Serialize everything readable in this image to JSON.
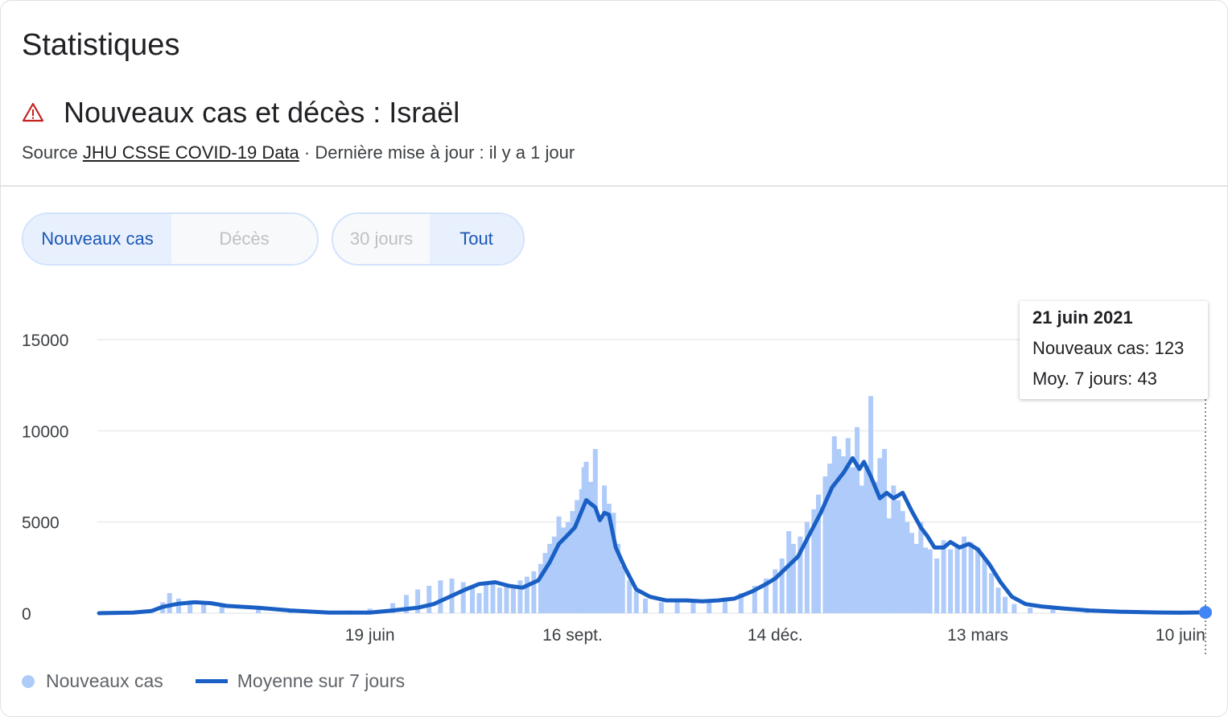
{
  "header": {
    "heading": "Statistiques",
    "title": "Nouveaux cas et décès : Israël",
    "source_prefix": "Source ",
    "source_link": "JHU CSSE COVID-19 Data",
    "source_suffix": " · Dernière mise à jour : il y a 1 jour",
    "warning_icon": "warning-triangle-icon"
  },
  "controls": {
    "metric": [
      {
        "label": "Nouveaux cas",
        "selected": true
      },
      {
        "label": "Décès",
        "selected": false
      }
    ],
    "range": [
      {
        "label": "30 jours",
        "selected": false
      },
      {
        "label": "Tout",
        "selected": true
      }
    ]
  },
  "tooltip": {
    "date": "21 juin 2021",
    "cases": "Nouveaux cas: 123",
    "avg": "Moy. 7 jours: 43"
  },
  "legend": {
    "bars": "Nouveaux cas",
    "line": "Moyenne sur 7 jours"
  },
  "colors": {
    "bar": "#aecbfa",
    "line": "#1a5fc4",
    "grid": "#ebebeb",
    "accent": "#1a57b4"
  },
  "chart_data": {
    "type": "bar",
    "title": "Nouveaux cas et décès : Israël",
    "x_start": "2020-02-21",
    "x_end": "2021-06-21",
    "ylim": [
      0,
      15000
    ],
    "yticks": [
      0,
      5000,
      10000,
      15000
    ],
    "ytick_labels": [
      "0",
      "5000",
      "10000",
      "15000"
    ],
    "xticks": [
      {
        "date": "2020-06-19",
        "label": "19 juin"
      },
      {
        "date": "2020-09-16",
        "label": "16 sept."
      },
      {
        "date": "2020-12-14",
        "label": "14 déc."
      },
      {
        "date": "2021-03-13",
        "label": "13 mars"
      },
      {
        "date": "2021-06-10",
        "label": "10 juin"
      }
    ],
    "grid": true,
    "legend_position": "bottom-left",
    "series": [
      {
        "name": "Nouveaux cas",
        "kind": "bars",
        "points": [
          [
            "2020-03-20",
            600
          ],
          [
            "2020-03-23",
            1100
          ],
          [
            "2020-03-27",
            800
          ],
          [
            "2020-04-01",
            700
          ],
          [
            "2020-04-07",
            500
          ],
          [
            "2020-04-15",
            400
          ],
          [
            "2020-05-01",
            200
          ],
          [
            "2020-05-15",
            50
          ],
          [
            "2020-06-01",
            60
          ],
          [
            "2020-06-10",
            150
          ],
          [
            "2020-06-19",
            250
          ],
          [
            "2020-06-29",
            550
          ],
          [
            "2020-07-05",
            1000
          ],
          [
            "2020-07-10",
            1300
          ],
          [
            "2020-07-15",
            1500
          ],
          [
            "2020-07-20",
            1800
          ],
          [
            "2020-07-25",
            1900
          ],
          [
            "2020-07-30",
            1700
          ],
          [
            "2020-08-03",
            1500
          ],
          [
            "2020-08-06",
            1100
          ],
          [
            "2020-08-09",
            1600
          ],
          [
            "2020-08-12",
            1700
          ],
          [
            "2020-08-15",
            1400
          ],
          [
            "2020-08-18",
            1600
          ],
          [
            "2020-08-21",
            1500
          ],
          [
            "2020-08-24",
            1800
          ],
          [
            "2020-08-27",
            2000
          ],
          [
            "2020-08-30",
            2300
          ],
          [
            "2020-09-02",
            2700
          ],
          [
            "2020-09-04",
            3300
          ],
          [
            "2020-09-06",
            3800
          ],
          [
            "2020-09-08",
            4200
          ],
          [
            "2020-09-10",
            5300
          ],
          [
            "2020-09-12",
            4700
          ],
          [
            "2020-09-14",
            5000
          ],
          [
            "2020-09-16",
            5600
          ],
          [
            "2020-09-18",
            6200
          ],
          [
            "2020-09-20",
            6800
          ],
          [
            "2020-09-21",
            8000
          ],
          [
            "2020-09-22",
            8300
          ],
          [
            "2020-09-24",
            7200
          ],
          [
            "2020-09-26",
            9000
          ],
          [
            "2020-09-28",
            5200
          ],
          [
            "2020-09-30",
            7000
          ],
          [
            "2020-10-02",
            6000
          ],
          [
            "2020-10-04",
            5500
          ],
          [
            "2020-10-06",
            3800
          ],
          [
            "2020-10-08",
            2600
          ],
          [
            "2020-10-11",
            1800
          ],
          [
            "2020-10-14",
            1200
          ],
          [
            "2020-10-18",
            800
          ],
          [
            "2020-10-25",
            600
          ],
          [
            "2020-11-01",
            700
          ],
          [
            "2020-11-08",
            650
          ],
          [
            "2020-11-15",
            700
          ],
          [
            "2020-11-22",
            850
          ],
          [
            "2020-11-29",
            1100
          ],
          [
            "2020-12-05",
            1500
          ],
          [
            "2020-12-10",
            1900
          ],
          [
            "2020-12-14",
            2400
          ],
          [
            "2020-12-17",
            3000
          ],
          [
            "2020-12-20",
            4500
          ],
          [
            "2020-12-22",
            3800
          ],
          [
            "2020-12-25",
            4200
          ],
          [
            "2020-12-28",
            5000
          ],
          [
            "2020-12-31",
            5700
          ],
          [
            "2021-01-02",
            6500
          ],
          [
            "2021-01-05",
            7500
          ],
          [
            "2021-01-07",
            8200
          ],
          [
            "2021-01-09",
            9700
          ],
          [
            "2021-01-11",
            9000
          ],
          [
            "2021-01-13",
            8600
          ],
          [
            "2021-01-15",
            9600
          ],
          [
            "2021-01-17",
            8000
          ],
          [
            "2021-01-19",
            10200
          ],
          [
            "2021-01-21",
            7000
          ],
          [
            "2021-01-23",
            8000
          ],
          [
            "2021-01-25",
            11900
          ],
          [
            "2021-01-27",
            7200
          ],
          [
            "2021-01-29",
            8500
          ],
          [
            "2021-01-31",
            9000
          ],
          [
            "2021-02-02",
            5200
          ],
          [
            "2021-02-04",
            7000
          ],
          [
            "2021-02-06",
            6200
          ],
          [
            "2021-02-08",
            5600
          ],
          [
            "2021-02-10",
            5000
          ],
          [
            "2021-02-12",
            4400
          ],
          [
            "2021-02-14",
            3800
          ],
          [
            "2021-02-16",
            5000
          ],
          [
            "2021-02-18",
            3600
          ],
          [
            "2021-02-20",
            3500
          ],
          [
            "2021-02-23",
            3000
          ],
          [
            "2021-02-26",
            4000
          ],
          [
            "2021-03-01",
            3500
          ],
          [
            "2021-03-04",
            3700
          ],
          [
            "2021-03-07",
            4200
          ],
          [
            "2021-03-10",
            3900
          ],
          [
            "2021-03-13",
            3600
          ],
          [
            "2021-03-16",
            3000
          ],
          [
            "2021-03-19",
            2200
          ],
          [
            "2021-03-22",
            1400
          ],
          [
            "2021-03-25",
            900
          ],
          [
            "2021-03-29",
            500
          ],
          [
            "2021-04-05",
            300
          ],
          [
            "2021-04-15",
            200
          ],
          [
            "2021-04-30",
            120
          ],
          [
            "2021-05-15",
            60
          ],
          [
            "2021-05-31",
            30
          ],
          [
            "2021-06-10",
            25
          ],
          [
            "2021-06-21",
            123
          ]
        ]
      },
      {
        "name": "Moyenne sur 7 jours",
        "kind": "line",
        "points": [
          [
            "2020-02-21",
            0
          ],
          [
            "2020-03-07",
            30
          ],
          [
            "2020-03-15",
            120
          ],
          [
            "2020-03-20",
            350
          ],
          [
            "2020-03-27",
            520
          ],
          [
            "2020-04-03",
            600
          ],
          [
            "2020-04-10",
            550
          ],
          [
            "2020-04-17",
            400
          ],
          [
            "2020-05-01",
            300
          ],
          [
            "2020-05-15",
            150
          ],
          [
            "2020-06-01",
            30
          ],
          [
            "2020-06-19",
            30
          ],
          [
            "2020-06-29",
            150
          ],
          [
            "2020-07-10",
            300
          ],
          [
            "2020-07-17",
            500
          ],
          [
            "2020-07-24",
            900
          ],
          [
            "2020-07-31",
            1300
          ],
          [
            "2020-08-06",
            1600
          ],
          [
            "2020-08-13",
            1700
          ],
          [
            "2020-08-19",
            1500
          ],
          [
            "2020-08-25",
            1400
          ],
          [
            "2020-09-01",
            1800
          ],
          [
            "2020-09-06",
            2800
          ],
          [
            "2020-09-10",
            3800
          ],
          [
            "2020-09-14",
            4300
          ],
          [
            "2020-09-17",
            4700
          ],
          [
            "2020-09-19",
            5300
          ],
          [
            "2020-09-22",
            6200
          ],
          [
            "2020-09-24",
            6000
          ],
          [
            "2020-09-26",
            5800
          ],
          [
            "2020-09-28",
            5100
          ],
          [
            "2020-09-30",
            5500
          ],
          [
            "2020-10-02",
            5400
          ],
          [
            "2020-10-05",
            3600
          ],
          [
            "2020-10-09",
            2500
          ],
          [
            "2020-10-14",
            1300
          ],
          [
            "2020-10-20",
            900
          ],
          [
            "2020-10-27",
            700
          ],
          [
            "2020-11-05",
            700
          ],
          [
            "2020-11-12",
            650
          ],
          [
            "2020-11-19",
            700
          ],
          [
            "2020-11-26",
            800
          ],
          [
            "2020-12-04",
            1200
          ],
          [
            "2020-12-10",
            1600
          ],
          [
            "2020-12-14",
            1900
          ],
          [
            "2020-12-19",
            2500
          ],
          [
            "2020-12-24",
            3100
          ],
          [
            "2020-12-29",
            4300
          ],
          [
            "2021-01-03",
            5500
          ],
          [
            "2021-01-08",
            6900
          ],
          [
            "2021-01-13",
            7700
          ],
          [
            "2021-01-17",
            8500
          ],
          [
            "2021-01-20",
            7900
          ],
          [
            "2021-01-22",
            8300
          ],
          [
            "2021-01-25",
            7500
          ],
          [
            "2021-01-29",
            6300
          ],
          [
            "2021-02-01",
            6600
          ],
          [
            "2021-02-04",
            6300
          ],
          [
            "2021-02-08",
            6600
          ],
          [
            "2021-02-12",
            5600
          ],
          [
            "2021-02-16",
            4700
          ],
          [
            "2021-02-19",
            4200
          ],
          [
            "2021-02-22",
            3600
          ],
          [
            "2021-02-26",
            3600
          ],
          [
            "2021-03-01",
            3900
          ],
          [
            "2021-03-05",
            3600
          ],
          [
            "2021-03-09",
            3800
          ],
          [
            "2021-03-13",
            3500
          ],
          [
            "2021-03-18",
            2700
          ],
          [
            "2021-03-23",
            1700
          ],
          [
            "2021-03-28",
            900
          ],
          [
            "2021-04-03",
            500
          ],
          [
            "2021-04-10",
            370
          ],
          [
            "2021-04-20",
            250
          ],
          [
            "2021-05-01",
            150
          ],
          [
            "2021-05-15",
            80
          ],
          [
            "2021-05-31",
            40
          ],
          [
            "2021-06-10",
            25
          ],
          [
            "2021-06-21",
            43
          ]
        ]
      }
    ]
  }
}
